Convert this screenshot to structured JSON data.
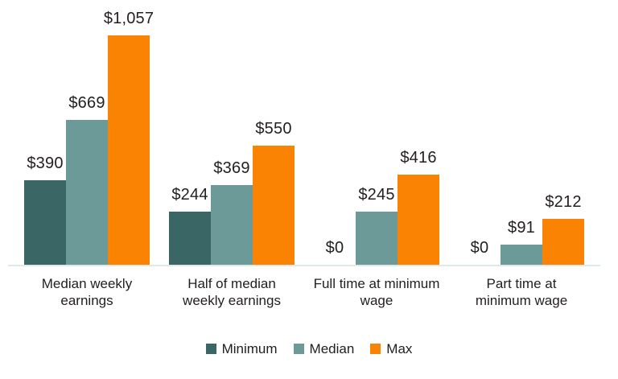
{
  "chart_data": {
    "type": "bar",
    "categories": [
      "Median weekly earnings",
      "Half of median weekly earnings",
      "Full time at minimum wage",
      "Part time at minimum wage"
    ],
    "category_lines": [
      [
        "Median weekly",
        "earnings"
      ],
      [
        "Half of median",
        "weekly earnings"
      ],
      [
        "Full time at minimum",
        "wage"
      ],
      [
        "Part time at",
        "minimum wage"
      ]
    ],
    "series": [
      {
        "name": "Minimum",
        "color": "#3A6666",
        "values": [
          390,
          244,
          0,
          0
        ],
        "labels": [
          "$390",
          "$244",
          "$0",
          "$0"
        ]
      },
      {
        "name": "Median",
        "color": "#6C9A98",
        "values": [
          669,
          369,
          245,
          91
        ],
        "labels": [
          "$669",
          "$369",
          "$245",
          "$91"
        ]
      },
      {
        "name": "Max",
        "color": "#FB8304",
        "values": [
          1057,
          550,
          416,
          212
        ],
        "labels": [
          "$1,057",
          "$550",
          "$416",
          "$212"
        ]
      }
    ],
    "title": "",
    "xlabel": "",
    "ylabel": "",
    "ylim": [
      0,
      1057
    ],
    "grid": false,
    "legend_position": "bottom",
    "colors": {
      "axis_line": "#DEE9E9",
      "text": "#242021",
      "background": "#FFFFFF"
    }
  }
}
